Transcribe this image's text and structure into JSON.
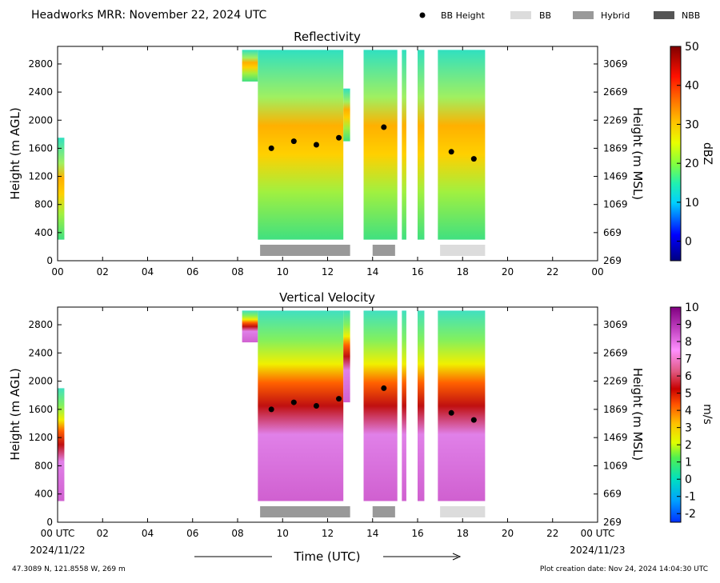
{
  "header": {
    "title": "Headworks MRR:  November 22, 2024 UTC",
    "legend": [
      {
        "label": "BB Height",
        "symbol": "dot",
        "color": "#000000"
      },
      {
        "label": "BB",
        "symbol": "box",
        "color": "#dcdcdc"
      },
      {
        "label": "Hybrid",
        "symbol": "box",
        "color": "#999999"
      },
      {
        "label": "NBB",
        "symbol": "box",
        "color": "#555555"
      }
    ]
  },
  "chart_data": [
    {
      "type": "heatmap",
      "title": "Reflectivity",
      "ylabel": "Height (m AGL)",
      "y2label": "Height (m MSL)",
      "xlim": [
        0,
        24
      ],
      "ylim": [
        0,
        3050
      ],
      "yticks": [
        0,
        400,
        800,
        1200,
        1600,
        2000,
        2400,
        2800
      ],
      "y2ticks": [
        "269",
        "669",
        "1069",
        "1469",
        "1869",
        "2269",
        "2669",
        "3069"
      ],
      "xticks": [
        "00",
        "02",
        "04",
        "06",
        "08",
        "10",
        "12",
        "14",
        "16",
        "18",
        "20",
        "22",
        "00"
      ],
      "colorbar": {
        "label": "dBZ",
        "min": -5,
        "max": 50,
        "ticks": [
          0,
          10,
          20,
          30,
          40,
          50
        ]
      },
      "data_blocks": [
        {
          "x": [
            0.0,
            0.3
          ],
          "y": [
            300,
            1750
          ]
        },
        {
          "x": [
            8.2,
            8.9
          ],
          "y": [
            2550,
            3000
          ]
        },
        {
          "x": [
            8.9,
            12.7
          ],
          "y": [
            300,
            3000
          ]
        },
        {
          "x": [
            12.7,
            13.0
          ],
          "y": [
            1700,
            2450
          ]
        },
        {
          "x": [
            13.6,
            15.1
          ],
          "y": [
            300,
            3000
          ]
        },
        {
          "x": [
            15.3,
            15.5
          ],
          "y": [
            300,
            3000
          ]
        },
        {
          "x": [
            16.0,
            16.3
          ],
          "y": [
            300,
            3000
          ]
        },
        {
          "x": [
            16.9,
            19.0
          ],
          "y": [
            300,
            3000
          ]
        }
      ],
      "bb_height": [
        {
          "x": 9.5,
          "y": 1600
        },
        {
          "x": 10.5,
          "y": 1700
        },
        {
          "x": 11.5,
          "y": 1650
        },
        {
          "x": 12.5,
          "y": 1750
        },
        {
          "x": 14.5,
          "y": 1900
        },
        {
          "x": 17.5,
          "y": 1550
        },
        {
          "x": 18.5,
          "y": 1450
        }
      ],
      "bb_type_bars": [
        {
          "start": 9.0,
          "end": 13.0,
          "type": "Hybrid"
        },
        {
          "start": 14.0,
          "end": 15.0,
          "type": "Hybrid"
        },
        {
          "start": 17.0,
          "end": 19.0,
          "type": "BB"
        }
      ]
    },
    {
      "type": "heatmap",
      "title": "Vertical Velocity",
      "ylabel": "Height (m AGL)",
      "y2label": "Height (m MSL)",
      "xlabel": "Time (UTC)",
      "xlim": [
        0,
        24
      ],
      "ylim": [
        0,
        3050
      ],
      "yticks": [
        0,
        400,
        800,
        1200,
        1600,
        2000,
        2400,
        2800
      ],
      "y2ticks": [
        "269",
        "669",
        "1069",
        "1469",
        "1869",
        "2269",
        "2669",
        "3069"
      ],
      "xticks": [
        "00 UTC",
        "02",
        "04",
        "06",
        "08",
        "10",
        "12",
        "14",
        "16",
        "18",
        "20",
        "22",
        "00 UTC"
      ],
      "xdates": {
        "start": "2024/11/22",
        "end": "2024/11/23"
      },
      "colorbar": {
        "label": "m/s",
        "min": -2.5,
        "max": 10,
        "ticks": [
          -2,
          -1,
          0,
          1,
          2,
          3,
          4,
          5,
          6,
          7,
          8,
          9,
          10
        ]
      },
      "data_blocks": [
        {
          "x": [
            0.0,
            0.3
          ],
          "y": [
            300,
            1900
          ]
        },
        {
          "x": [
            8.2,
            8.9
          ],
          "y": [
            2550,
            3000
          ]
        },
        {
          "x": [
            8.9,
            12.7
          ],
          "y": [
            300,
            3000
          ]
        },
        {
          "x": [
            12.7,
            13.0
          ],
          "y": [
            1700,
            3000
          ]
        },
        {
          "x": [
            13.6,
            15.1
          ],
          "y": [
            300,
            3000
          ]
        },
        {
          "x": [
            15.3,
            15.5
          ],
          "y": [
            300,
            3000
          ]
        },
        {
          "x": [
            16.0,
            16.3
          ],
          "y": [
            300,
            3000
          ]
        },
        {
          "x": [
            16.9,
            19.0
          ],
          "y": [
            300,
            3000
          ]
        }
      ],
      "bb_height": [
        {
          "x": 9.5,
          "y": 1600
        },
        {
          "x": 10.5,
          "y": 1700
        },
        {
          "x": 11.5,
          "y": 1650
        },
        {
          "x": 12.5,
          "y": 1750
        },
        {
          "x": 14.5,
          "y": 1900
        },
        {
          "x": 17.5,
          "y": 1550
        },
        {
          "x": 18.5,
          "y": 1450
        }
      ],
      "bb_type_bars": [
        {
          "start": 9.0,
          "end": 13.0,
          "type": "Hybrid"
        },
        {
          "start": 14.0,
          "end": 15.0,
          "type": "Hybrid"
        },
        {
          "start": 17.0,
          "end": 19.0,
          "type": "BB"
        }
      ]
    }
  ],
  "footer": {
    "location": "47.3089 N, 121.8558 W, 269 m",
    "created": "Plot creation date: Nov 24, 2024 14:04:30 UTC"
  }
}
